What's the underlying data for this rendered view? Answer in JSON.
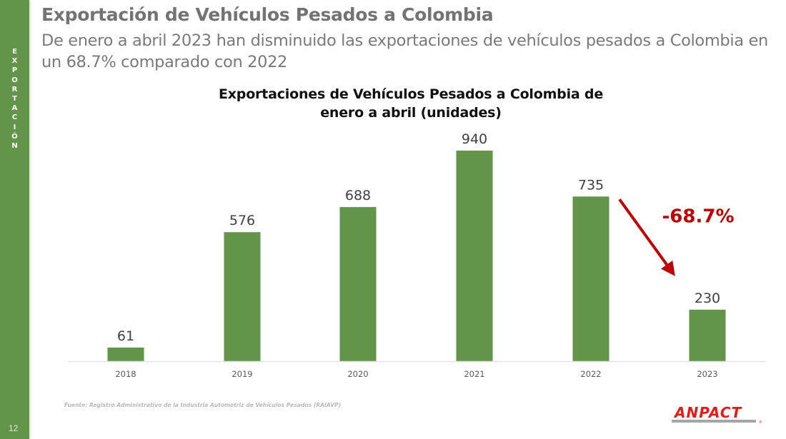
{
  "sidebar": {
    "section_letters": [
      "E",
      "X",
      "P",
      "O",
      "R",
      "T",
      "A",
      "C",
      "I",
      "Ó",
      "N"
    ],
    "page_number": "12"
  },
  "header": {
    "title": "Exportación de Vehículos Pesados a Colombia",
    "subtitle": "De enero a abril 2023 han disminuido las exportaciones de vehículos pesados a Colombia en un 68.7% comparado con 2022"
  },
  "chart_data": {
    "type": "bar",
    "title_line1": "Exportaciones de Vehículos Pesados a Colombia de",
    "title_line2": "enero a abril (unidades)",
    "categories": [
      "2018",
      "2019",
      "2020",
      "2021",
      "2022",
      "2023"
    ],
    "values": [
      61,
      576,
      688,
      940,
      735,
      230
    ],
    "value_labels": [
      "61",
      "576",
      "688",
      "940",
      "735",
      "230"
    ],
    "xlabel": "",
    "ylabel": "",
    "ylim": [
      0,
      940
    ],
    "grid": false,
    "legend": "none",
    "annotation": {
      "text": "-68.7%",
      "from": "2022",
      "to": "2023",
      "color": "#c00000"
    },
    "bar_color": "#62954a"
  },
  "footer": {
    "source": "Fuente: Registro Administrativo de la Industria Automotriz de Vehículos Pesados (RAIAVP)",
    "logo_text": "ANPACT"
  },
  "colors": {
    "sidebar": "#62954a",
    "title": "#737373",
    "accent_red": "#c00000"
  }
}
